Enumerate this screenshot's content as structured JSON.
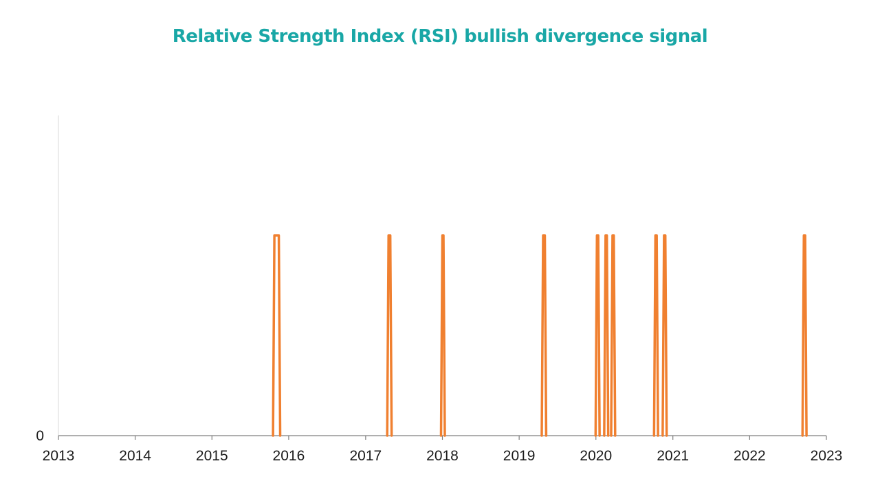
{
  "chart_data": {
    "type": "line",
    "title": "Relative Strength Index (RSI) bullish divergence signal",
    "xlabel": "",
    "ylabel": "",
    "x_tick_labels": [
      "2013",
      "2014",
      "2015",
      "2016",
      "2017",
      "2018",
      "2019",
      "2020",
      "2021",
      "2022",
      "2023"
    ],
    "y_tick_labels": [
      "0"
    ],
    "xlim": [
      "2013-01-01",
      "2023-01-01"
    ],
    "ylim": [
      0,
      1.6
    ],
    "grid": false,
    "legend": "none",
    "series": [
      {
        "color": "#f08030",
        "signals": [
          {
            "start": "2015-10-25",
            "end": "2015-11-15",
            "value": 1
          },
          {
            "start": "2017-04-20",
            "end": "2017-04-28",
            "value": 1
          },
          {
            "start": "2018-01-01",
            "end": "2018-01-06",
            "value": 1
          },
          {
            "start": "2019-04-25",
            "end": "2019-05-03",
            "value": 1
          },
          {
            "start": "2020-01-06",
            "end": "2020-01-12",
            "value": 1
          },
          {
            "start": "2020-02-16",
            "end": "2020-02-22",
            "value": 1
          },
          {
            "start": "2020-03-20",
            "end": "2020-03-26",
            "value": 1
          },
          {
            "start": "2020-10-10",
            "end": "2020-10-16",
            "value": 1
          },
          {
            "start": "2020-11-20",
            "end": "2020-11-26",
            "value": 1
          },
          {
            "start": "2022-09-16",
            "end": "2022-09-22",
            "value": 1
          }
        ]
      }
    ]
  }
}
